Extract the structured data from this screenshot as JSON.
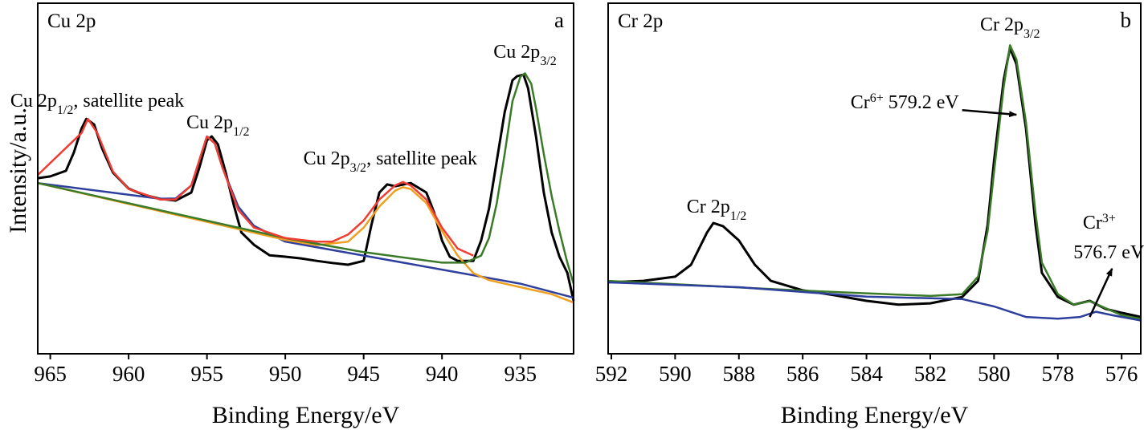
{
  "chart_data": [
    {
      "type": "line",
      "title": "Cu 2p",
      "panel_label": "a",
      "xlabel": "Binding Energy/eV",
      "ylabel": "Intensity/a.u.",
      "xlim": [
        965.8,
        931.6
      ],
      "xticks": [
        965,
        960,
        955,
        950,
        945,
        940,
        935
      ],
      "ylim": [
        0,
        100
      ],
      "series": [
        {
          "color": "#000000",
          "x": [
            965.8,
            965,
            964,
            963.5,
            963,
            962.7,
            962.2,
            961.7,
            961,
            960,
            959,
            958,
            957,
            956,
            955.5,
            955,
            954.7,
            954.3,
            953.8,
            953.3,
            952.8,
            952,
            951,
            950,
            949,
            948,
            947,
            946,
            945,
            944.5,
            944,
            943.5,
            943,
            942,
            941,
            940.5,
            940,
            939.5,
            939,
            938,
            937.5,
            937,
            936.5,
            936,
            935.5,
            935.2,
            934.8,
            934.5,
            934,
            933.5,
            933,
            932.5,
            932,
            931.6
          ],
          "values": [
            50.1,
            50.6,
            52.2,
            57.4,
            64.3,
            67.0,
            65.4,
            58.6,
            51.7,
            47.1,
            45.3,
            44.2,
            43.7,
            46.0,
            52.9,
            60.9,
            62.0,
            59.7,
            51.7,
            42.6,
            34.6,
            31.1,
            28.1,
            27.7,
            27.2,
            26.5,
            25.9,
            25.4,
            26.5,
            36.8,
            46.0,
            48.3,
            47.8,
            48.7,
            46.0,
            40.3,
            32.3,
            27.7,
            26.5,
            26.5,
            32.3,
            41.4,
            55.1,
            68.9,
            78.0,
            79.2,
            79.6,
            75.7,
            62.0,
            46.0,
            34.6,
            27.7,
            23.1,
            15.1
          ]
        },
        {
          "color": "#2e3f9e",
          "x": [
            965.8,
            958,
            957,
            956,
            955.5,
            955,
            954.5,
            954,
            953,
            952,
            950,
            945,
            940,
            935,
            931.6
          ],
          "values": [
            48.7,
            44.2,
            44.3,
            48,
            55,
            62,
            60,
            53,
            42,
            36.5,
            32,
            28,
            24,
            20,
            16
          ]
        },
        {
          "color": "#f0a020",
          "x": [
            965.8,
            950,
            948,
            946,
            945,
            944,
            943,
            942.5,
            942,
            941,
            940,
            939,
            938,
            937,
            935,
            933,
            931.6
          ],
          "values": [
            48.7,
            32.5,
            31,
            32,
            36,
            42,
            46.5,
            47.5,
            47,
            43,
            35,
            28,
            23,
            21,
            19,
            17,
            14.6
          ]
        },
        {
          "color": "#3a7a28",
          "x": [
            965.8,
            950,
            945,
            940,
            938.5,
            937.5,
            937,
            936.5,
            936,
            935.5,
            935,
            934.7,
            934.3,
            934,
            933.5,
            933,
            932.5,
            932,
            931.6
          ],
          "values": [
            48.7,
            33,
            29,
            26,
            26,
            28,
            33,
            43,
            57,
            72,
            79,
            80,
            77,
            70,
            57,
            45,
            35,
            26,
            20
          ]
        },
        {
          "color": "#f03c32",
          "x": [
            965.8,
            963,
            962.6,
            962,
            961,
            960,
            958,
            957,
            956,
            955.5,
            955,
            954.5,
            954,
            953,
            952,
            950,
            948,
            947,
            946,
            945,
            944,
            943,
            942.5,
            942,
            941,
            940,
            939,
            938
          ],
          "values": [
            51,
            63,
            67,
            63,
            52,
            47,
            44,
            44,
            48,
            55,
            62,
            60,
            53,
            41,
            36,
            33,
            32,
            32,
            34,
            38,
            44,
            48,
            49,
            48,
            44,
            36,
            30,
            28
          ]
        }
      ],
      "annotations": [
        {
          "label": [
            {
              "text": "Cu 2p"
            },
            {
              "sub": "3/2"
            }
          ],
          "x": 934.7,
          "y": 84.4
        },
        {
          "label": [
            {
              "text": "Cu 2p"
            },
            {
              "sub": "1/2"
            },
            {
              "text": ", satellite peak"
            }
          ],
          "x": 962,
          "y": 70.5
        },
        {
          "label": [
            {
              "text": "Cu 2p"
            },
            {
              "sub": "1/2"
            }
          ],
          "x": 954.3,
          "y": 64.3
        },
        {
          "label": [
            {
              "text": "Cu 2p"
            },
            {
              "sub": "3/2"
            },
            {
              "text": ", satellite peak"
            }
          ],
          "x": 943.3,
          "y": 54.0
        }
      ]
    },
    {
      "type": "line",
      "title": "Cr 2p",
      "panel_label": "b",
      "xlabel": "Binding Energy/eV",
      "xlim": [
        592.1,
        575.4
      ],
      "xticks": [
        592,
        590,
        588,
        586,
        584,
        582,
        580,
        578,
        576
      ],
      "ylim": [
        0,
        100
      ],
      "series": [
        {
          "color": "#000000",
          "x": [
            592.1,
            591,
            590,
            589.5,
            589,
            588.8,
            588.5,
            588,
            587.5,
            587,
            586,
            585,
            584,
            583,
            582,
            581,
            580.5,
            580.2,
            580,
            579.7,
            579.5,
            579.3,
            579,
            578.7,
            578.5,
            578,
            577.5,
            577,
            576.5,
            576,
            575.4
          ],
          "values": [
            20.4,
            20.8,
            22.0,
            25.4,
            34.6,
            37.3,
            36.4,
            32.3,
            25.4,
            20.8,
            18.1,
            16.7,
            15.1,
            14.0,
            14.4,
            16.2,
            20.8,
            36.8,
            55.1,
            78.0,
            87.2,
            82.6,
            64.3,
            36.8,
            23.1,
            16.2,
            14.0,
            15.1,
            12.8,
            11.7,
            10.5
          ]
        },
        {
          "color": "#3a7a28",
          "x": [
            592.1,
            586,
            582,
            581,
            580.5,
            580.2,
            580,
            579.7,
            579.5,
            579.3,
            579,
            578.7,
            578.5,
            578,
            577.5,
            577,
            576.5,
            576,
            575.4
          ],
          "values": [
            20.8,
            18,
            16.5,
            17,
            22,
            35,
            52,
            76,
            88,
            84,
            66,
            40,
            26,
            17,
            14,
            15,
            13,
            11,
            10
          ]
        },
        {
          "color": "#2e3f9e",
          "x": [
            592.1,
            588,
            584,
            581,
            580,
            579,
            578,
            577.3,
            576.8,
            576.3,
            575.4
          ],
          "values": [
            20.4,
            19,
            16.3,
            15.6,
            13.5,
            10.5,
            10,
            10.5,
            12,
            11,
            9.5
          ]
        }
      ],
      "annotations": [
        {
          "label": [
            {
              "text": "Cr 2p"
            },
            {
              "sub": "3/2"
            }
          ],
          "x": 579.5,
          "y": 92.2
        },
        {
          "label": [
            {
              "text": "Cr"
            },
            {
              "sup": "6+"
            },
            {
              "text": " 579.2 eV"
            }
          ],
          "x": 582.8,
          "y": 70.0,
          "arrow": {
            "from": [
              581.0,
              69.5
            ],
            "to": [
              579.3,
              68.2
            ]
          }
        },
        {
          "label": [
            {
              "text": "Cr 2p"
            },
            {
              "sub": "1/2"
            }
          ],
          "x": 588.7,
          "y": 40.3
        },
        {
          "label": [
            {
              "text": "Cr"
            },
            {
              "sup": "3+"
            }
          ],
          "x": 576.7,
          "y": 35.7
        },
        {
          "label": [
            {
              "text": "576.7 eV"
            }
          ],
          "x": 576.4,
          "y": 27.2,
          "arrow": {
            "from": [
              577.0,
              10.5
            ],
            "to": [
              576.3,
              24.3
            ]
          }
        }
      ]
    }
  ]
}
